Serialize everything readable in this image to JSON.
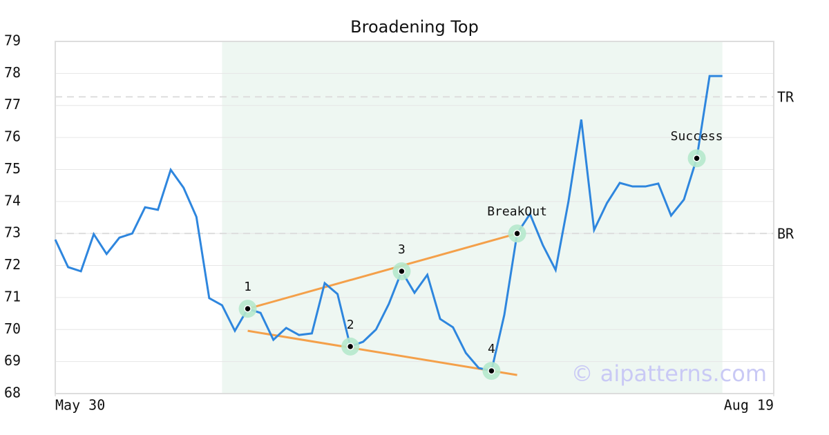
{
  "chart_data": {
    "type": "line",
    "title": "Broadening Top",
    "x": [
      0,
      1,
      2,
      3,
      4,
      5,
      6,
      7,
      8,
      9,
      10,
      11,
      12,
      13,
      14,
      15,
      16,
      17,
      18,
      19,
      20,
      21,
      22,
      23,
      24,
      25,
      26,
      27,
      28,
      29,
      30,
      31,
      32,
      33,
      34,
      35,
      36,
      37,
      38,
      39,
      40,
      41,
      42,
      43,
      44,
      45,
      46,
      47,
      48,
      49,
      50,
      51,
      52
    ],
    "values": [
      72.81,
      71.95,
      71.82,
      72.98,
      72.36,
      72.87,
      73.0,
      73.82,
      73.74,
      74.99,
      74.43,
      73.52,
      70.98,
      70.76,
      69.96,
      70.65,
      70.52,
      69.68,
      70.05,
      69.83,
      69.88,
      71.45,
      71.11,
      69.47,
      69.62,
      70.0,
      70.8,
      71.82,
      71.15,
      71.71,
      70.33,
      70.07,
      69.27,
      68.8,
      68.71,
      70.46,
      73.0,
      73.61,
      72.64,
      71.86,
      74.0,
      76.56,
      73.11,
      73.95,
      74.58,
      74.47,
      74.47,
      74.56,
      73.56,
      74.06,
      75.35,
      77.92,
      77.92
    ],
    "color": "#2e86de",
    "xlim": [
      0,
      56
    ],
    "xticks": [
      {
        "value": 0,
        "label": "May 30"
      },
      {
        "value": 56,
        "label": "Aug 19"
      }
    ],
    "ylim": [
      68,
      79
    ],
    "yticks": [
      68,
      69,
      70,
      71,
      72,
      73,
      74,
      75,
      76,
      77,
      78,
      79
    ],
    "grid": true,
    "shade": {
      "from": 13,
      "to": 52,
      "color": "#eef7f2"
    },
    "hlines": [
      {
        "label": "TR",
        "value": 77.27
      },
      {
        "label": "BR",
        "value": 73.0
      }
    ],
    "trendlines": [
      {
        "x": [
          15,
          36
        ],
        "values": [
          70.65,
          73.0
        ],
        "color": "#f4a04a"
      },
      {
        "x": [
          15,
          36
        ],
        "values": [
          69.96,
          68.58
        ],
        "color": "#f4a04a"
      }
    ],
    "points": [
      {
        "label": "1",
        "x": 15,
        "value": 70.65
      },
      {
        "label": "2",
        "x": 23,
        "value": 69.47
      },
      {
        "label": "3",
        "x": 27,
        "value": 71.82
      },
      {
        "label": "4",
        "x": 34,
        "value": 68.71
      },
      {
        "label": "BreakOut",
        "x": 36,
        "value": 73.0
      },
      {
        "label": "Success",
        "x": 50,
        "value": 75.35
      }
    ],
    "watermark": "© aipatterns.com"
  }
}
